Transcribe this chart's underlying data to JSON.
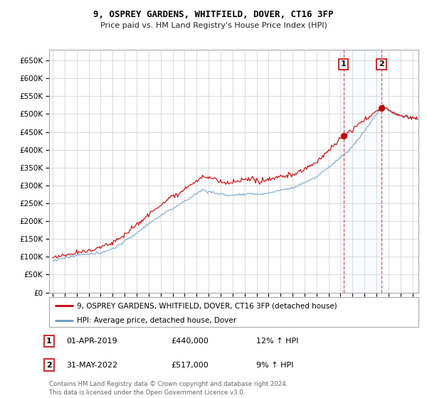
{
  "title": "9, OSPREY GARDENS, WHITFIELD, DOVER, CT16 3FP",
  "subtitle": "Price paid vs. HM Land Registry's House Price Index (HPI)",
  "ytick_values": [
    0,
    50000,
    100000,
    150000,
    200000,
    250000,
    300000,
    350000,
    400000,
    450000,
    500000,
    550000,
    600000,
    650000
  ],
  "ylim": [
    0,
    680000
  ],
  "xlim_start": 1994.7,
  "xlim_end": 2025.5,
  "transaction1_date": 2019.25,
  "transaction1_price": 440000,
  "transaction2_date": 2022.42,
  "transaction2_price": 517000,
  "legend_property": "9, OSPREY GARDENS, WHITFIELD, DOVER, CT16 3FP (detached house)",
  "legend_hpi": "HPI: Average price, detached house, Dover",
  "footer": "Contains HM Land Registry data © Crown copyright and database right 2024.\nThis data is licensed under the Open Government Licence v3.0.",
  "property_color": "#cc0000",
  "hpi_color": "#6699cc",
  "grid_color": "#cccccc",
  "bg_color": "#ffffff",
  "shade_color": "#ddeeff",
  "annotation_box_color": "#cc3333",
  "dashed_line_color": "#cc3333"
}
